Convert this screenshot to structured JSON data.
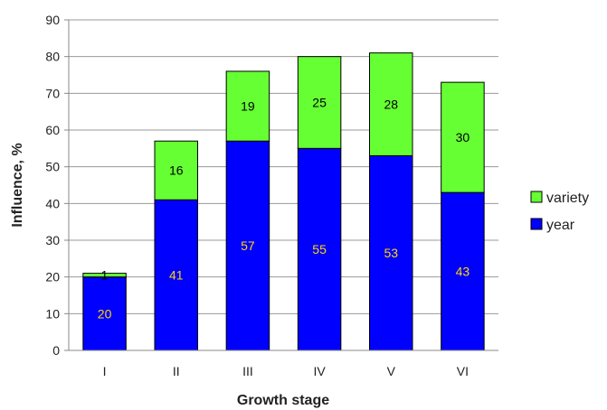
{
  "chart_data": {
    "type": "bar",
    "stacked": true,
    "title": "",
    "xlabel": "Growth stage",
    "ylabel": "Influence, %",
    "ylim": [
      0,
      90
    ],
    "yticks": [
      0,
      10,
      20,
      30,
      40,
      50,
      60,
      70,
      80,
      90
    ],
    "grid": true,
    "legend_position": "right",
    "categories": [
      "I",
      "II",
      "III",
      "IV",
      "V",
      "VI"
    ],
    "series": [
      {
        "name": "year",
        "color": "#0000ff",
        "label_color": "#ffd700",
        "values": [
          20,
          41,
          57,
          55,
          53,
          43
        ],
        "labels": [
          "20",
          "41",
          "57",
          "55",
          "53",
          "43"
        ]
      },
      {
        "name": "variety",
        "color": "#66ff33",
        "label_color": "#000000",
        "values": [
          1,
          16,
          19,
          25,
          28,
          30
        ],
        "labels": [
          "1",
          "16",
          "19",
          "25",
          "28",
          "30"
        ]
      }
    ]
  }
}
